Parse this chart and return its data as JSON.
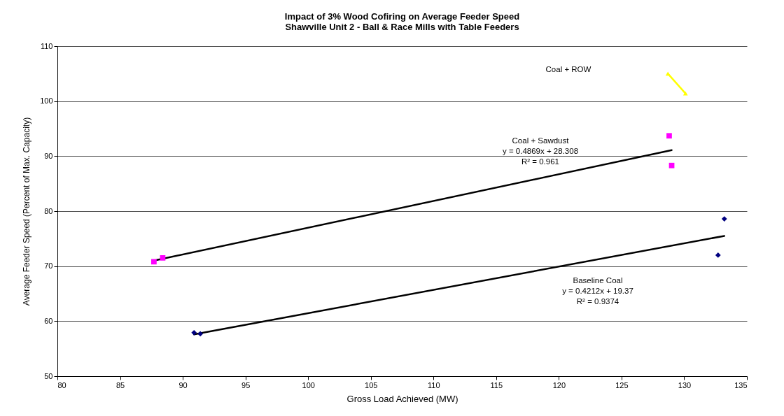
{
  "chart_data": {
    "type": "scatter",
    "title": "Impact of 3% Wood Cofiring on Average Feeder Speed\nShawville Unit 2 - Ball & Race Mills with Table Feeders",
    "xlabel": "Gross Load Achieved (MW)",
    "ylabel": "Average Feeder Speed (Percent of Max. Capacity)",
    "series": [
      {
        "marker": "diamond",
        "color": "#000080",
        "x": [
          90.9,
          91.4,
          133.2,
          132.7
        ],
        "values": [
          57.9,
          57.7,
          78.6,
          72.0
        ]
      },
      {
        "marker": "square",
        "color": "#ff00ff",
        "x": [
          87.7,
          88.4,
          128.8,
          129.0
        ],
        "values": [
          70.8,
          71.5,
          93.7,
          88.3
        ]
      },
      {
        "type": "line",
        "marker": "triangle",
        "color": "#ffff00",
        "x": [
          128.7,
          130.1
        ],
        "values": [
          105.0,
          101.4
        ]
      },
      {
        "type": "line",
        "marker": "none",
        "color": "#000000",
        "x": [
          90.9,
          133.2
        ],
        "values": [
          57.6,
          75.5
        ]
      },
      {
        "type": "line",
        "marker": "none",
        "color": "#000000",
        "x": [
          87.7,
          129.0
        ],
        "values": [
          71.0,
          91.1
        ]
      }
    ],
    "annotations": [
      "Coal + ROW",
      "Coal + Sawdust\ny = 0.4869x + 28.308\nR² = 0.961",
      "Baseline Coal\ny = 0.4212x + 19.37\nR² = 0.9374"
    ],
    "xlim": [
      80,
      135
    ],
    "xticks": [
      80,
      85,
      90,
      95,
      100,
      105,
      110,
      115,
      120,
      125,
      130,
      135
    ],
    "ylim": [
      50,
      110
    ],
    "yticks": [
      50,
      60,
      70,
      80,
      90,
      100,
      110
    ],
    "grid": "y"
  }
}
